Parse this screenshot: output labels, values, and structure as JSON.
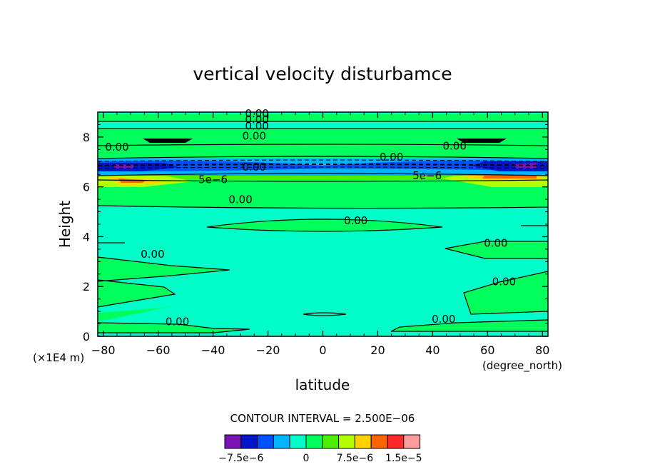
{
  "chart_data": {
    "type": "contour",
    "title": "vertical velocity disturbamce",
    "xlabel": "latitude",
    "xunits": "(degree_north)",
    "ylabel": "Height",
    "yunits": "(×1E4 m)",
    "xlim": [
      -82,
      82
    ],
    "ylim": [
      0,
      9
    ],
    "x_ticks": [
      -80,
      -60,
      -40,
      -20,
      0,
      20,
      40,
      60,
      80
    ],
    "x_tick_labels": [
      "−80",
      "−60",
      "−40",
      "−20",
      "0",
      "20",
      "40",
      "60",
      "80"
    ],
    "y_ticks": [
      0,
      2,
      4,
      6,
      8
    ],
    "y_tick_labels": [
      "0",
      "2",
      "4",
      "6",
      "8"
    ],
    "contour_labels": [
      {
        "text": "0.00",
        "x": -75,
        "y": 7.45
      },
      {
        "text": "0.00",
        "x": -62,
        "y": 3.15
      },
      {
        "text": "0.00",
        "x": -53,
        "y": 0.45
      },
      {
        "text": "0.00",
        "x": -30,
        "y": 5.35
      },
      {
        "text": "5e−6",
        "x": -40,
        "y": 6.15
      },
      {
        "text": "0.00",
        "x": -25,
        "y": 6.65
      },
      {
        "text": "0.00",
        "x": -25,
        "y": 7.9
      },
      {
        "text": "0.00",
        "x": -24,
        "y": 8.3
      },
      {
        "text": "0.00",
        "x": -24,
        "y": 8.55
      },
      {
        "text": "0.00",
        "x": -24,
        "y": 8.8
      },
      {
        "text": "0.00",
        "x": 12,
        "y": 4.5
      },
      {
        "text": "0.00",
        "x": 25,
        "y": 7.05
      },
      {
        "text": "5e−6",
        "x": 38,
        "y": 6.3
      },
      {
        "text": "0.00",
        "x": 48,
        "y": 7.5
      },
      {
        "text": "0.00",
        "x": 63,
        "y": 3.6
      },
      {
        "text": "0.00",
        "x": 66,
        "y": 2.05
      },
      {
        "text": "0.00",
        "x": 44,
        "y": 0.55
      }
    ],
    "contour_interval_label": "CONTOUR INTERVAL = 2.500E−06",
    "colorbar": {
      "colors": [
        "#7a14b4",
        "#0016c8",
        "#0050ff",
        "#00b4ff",
        "#00ffc8",
        "#00ff5a",
        "#4bf000",
        "#b4ff00",
        "#ffd200",
        "#ff6400",
        "#ff2828",
        "#ff9b9b"
      ],
      "tick_labels": [
        "−7.5e−6",
        "0",
        "7.5e−6",
        "1.5e−5"
      ]
    }
  }
}
